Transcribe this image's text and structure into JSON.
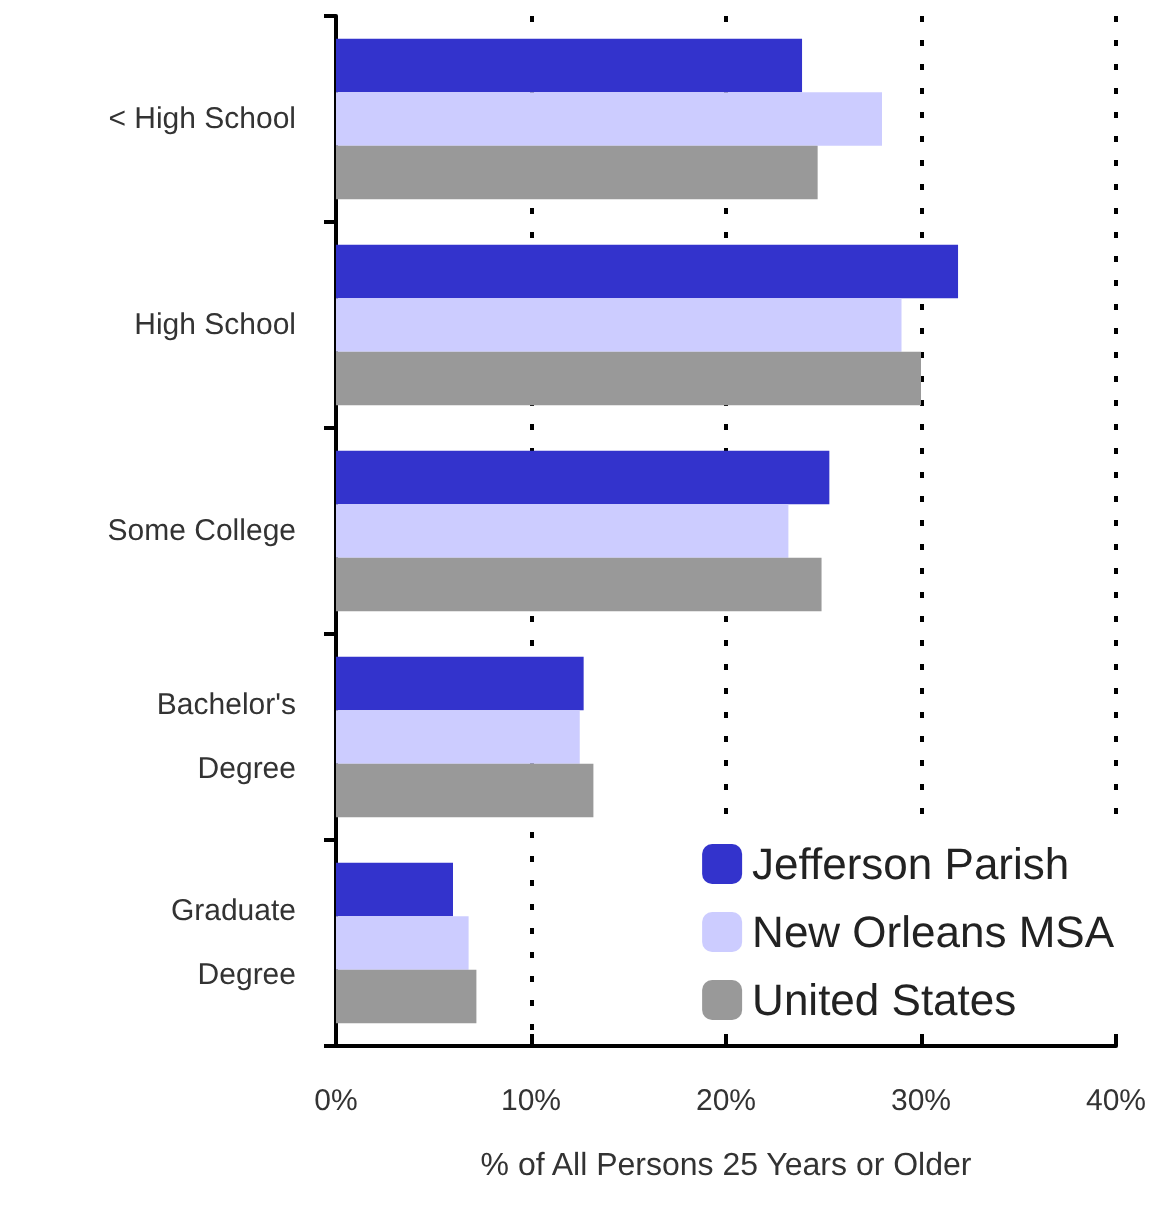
{
  "chart_data": {
    "type": "bar",
    "orientation": "horizontal",
    "xlabel": "% of All Persons 25 Years or Older",
    "categories": [
      "< High School",
      "High School",
      "Some College",
      "Bachelor's\nDegree",
      "Graduate\nDegree"
    ],
    "series": [
      {
        "name": "Jefferson Parish",
        "color": "#3333cc",
        "values": [
          23.9,
          31.9,
          25.3,
          12.7,
          6.0
        ]
      },
      {
        "name": "New Orleans MSA",
        "color": "#ccccff",
        "values": [
          28.0,
          29.0,
          23.2,
          12.5,
          6.8
        ]
      },
      {
        "name": "United States",
        "color": "#999999",
        "values": [
          24.7,
          30.0,
          24.9,
          13.2,
          7.2
        ]
      }
    ],
    "xlim": [
      0,
      40
    ],
    "xticks": [
      {
        "value": 0,
        "label": "0%"
      },
      {
        "value": 10,
        "label": "10%"
      },
      {
        "value": 20,
        "label": "20%"
      },
      {
        "value": 30,
        "label": "30%"
      },
      {
        "value": 40,
        "label": "40%"
      }
    ],
    "grid": "x",
    "legend": "bottom right"
  }
}
